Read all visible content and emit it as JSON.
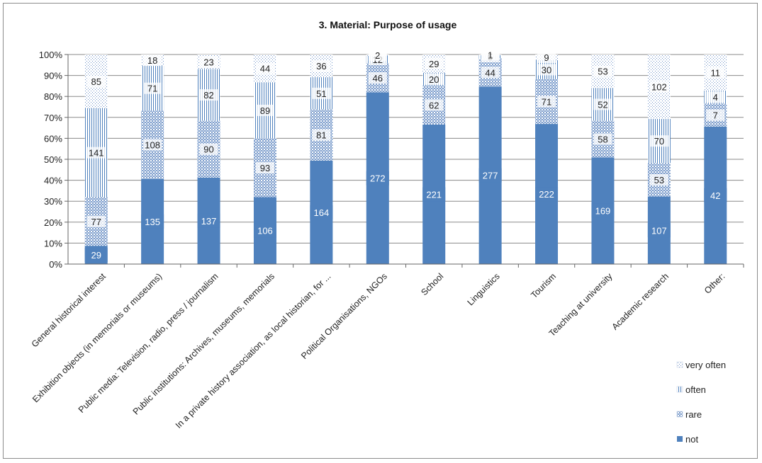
{
  "chart_data": {
    "type": "bar",
    "stacked": "percent",
    "title": "3. Material: Purpose of usage",
    "xlabel": "",
    "ylabel": "",
    "ylim": [
      0,
      100
    ],
    "y_ticks": [
      "0%",
      "10%",
      "20%",
      "30%",
      "40%",
      "50%",
      "60%",
      "70%",
      "80%",
      "90%",
      "100%"
    ],
    "grid": true,
    "legend_position": "right-bottom",
    "categories": [
      "General historical interest",
      "Exhibition objects (in memorials or museums)",
      "Public media: Television, radio, press / journalism",
      "Public institutions: Archives, museums, memorials",
      "In a private history association, as local historian, for ...",
      "Political Organisations, NGOs",
      "School",
      "Linguistics",
      "Tourism",
      "Teaching at university",
      "Academic research",
      "Other:"
    ],
    "series": [
      {
        "name": "not",
        "color": "#4f81bd",
        "pattern": "solid",
        "values": [
          29,
          135,
          137,
          106,
          164,
          272,
          221,
          277,
          222,
          169,
          107,
          42
        ]
      },
      {
        "name": "rare",
        "color": "#4f81bd",
        "pattern": "checker",
        "values": [
          77,
          108,
          90,
          93,
          81,
          46,
          62,
          44,
          71,
          58,
          53,
          7
        ]
      },
      {
        "name": "often",
        "color": "#4f81bd",
        "pattern": "vertical-lines",
        "values": [
          141,
          71,
          82,
          89,
          51,
          12,
          20,
          5,
          30,
          52,
          70,
          4
        ]
      },
      {
        "name": "very often",
        "color": "#4f81bd",
        "pattern": "dots",
        "values": [
          85,
          18,
          23,
          44,
          36,
          2,
          29,
          1,
          9,
          53,
          102,
          11
        ]
      }
    ]
  }
}
